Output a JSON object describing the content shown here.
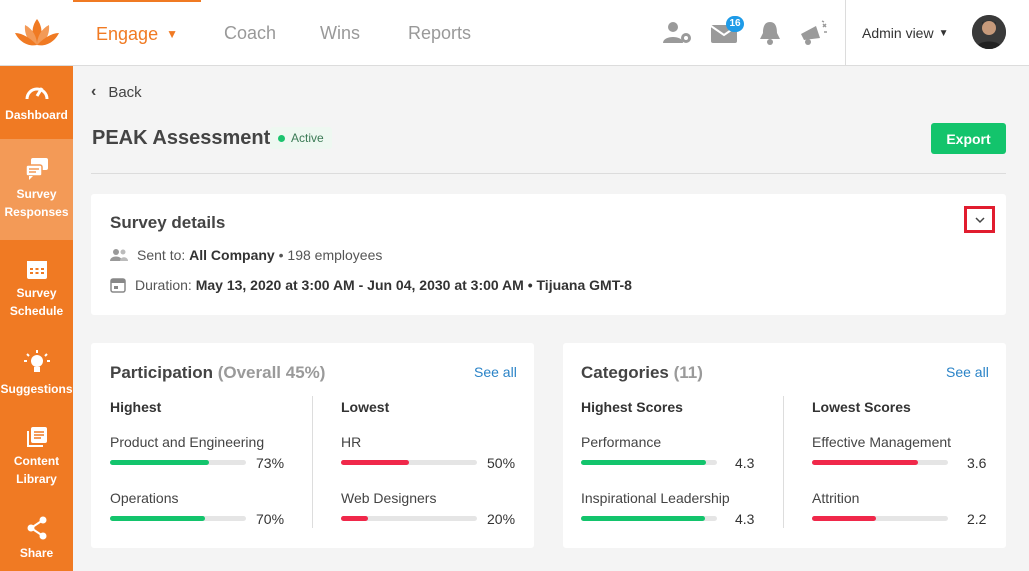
{
  "nav": {
    "engage": "Engage",
    "coach": "Coach",
    "wins": "Wins",
    "reports": "Reports",
    "mail_count": "16",
    "admin_view": "Admin view"
  },
  "sidebar": {
    "items": [
      {
        "label": "Dashboard",
        "icon": "gauge-icon"
      },
      {
        "label": "Survey Responses",
        "icon": "chat-bubbles-icon"
      },
      {
        "label": "Survey Schedule",
        "icon": "calendar-icon"
      },
      {
        "label": "Suggestions",
        "icon": "lightbulb-icon"
      },
      {
        "label": "Content Library",
        "icon": "library-icon"
      },
      {
        "label": "Share",
        "icon": "share-icon"
      }
    ]
  },
  "page": {
    "back_label": "Back",
    "title": "PEAK Assessment",
    "status": "Active",
    "export_label": "Export"
  },
  "survey_details": {
    "title": "Survey details",
    "sent_to_label": "Sent to:",
    "sent_to_value": "All Company",
    "sent_to_count": "• 198 employees",
    "duration_label": "Duration:",
    "duration_value": "May 13, 2020 at 3:00 AM - Jun 04, 2030 at 3:00 AM • Tijuana GMT-8"
  },
  "participation": {
    "title": "Participation",
    "overall": "(Overall 45%)",
    "see_all": "See all",
    "highest_label": "Highest",
    "lowest_label": "Lowest",
    "highest": [
      {
        "name": "Product and Engineering",
        "value": "73%",
        "fraction": 0.73
      },
      {
        "name": "Operations",
        "value": "70%",
        "fraction": 0.7
      }
    ],
    "lowest": [
      {
        "name": "HR",
        "value": "50%",
        "fraction": 0.5
      },
      {
        "name": "Web Designers",
        "value": "20%",
        "fraction": 0.2
      }
    ]
  },
  "categories": {
    "title": "Categories",
    "count": "(11)",
    "see_all": "See all",
    "highest_label": "Highest Scores",
    "lowest_label": "Lowest Scores",
    "highest": [
      {
        "name": "Performance",
        "value": "4.3",
        "fraction": 0.92
      },
      {
        "name": "Inspirational Leadership",
        "value": "4.3",
        "fraction": 0.91
      }
    ],
    "lowest": [
      {
        "name": "Effective Management",
        "value": "3.6",
        "fraction": 0.78
      },
      {
        "name": "Attrition",
        "value": "2.2",
        "fraction": 0.47
      }
    ]
  },
  "colors": {
    "brand": "#f07a23",
    "good": "#13c46c",
    "bad": "#f0284a",
    "link": "#2a83c7"
  }
}
